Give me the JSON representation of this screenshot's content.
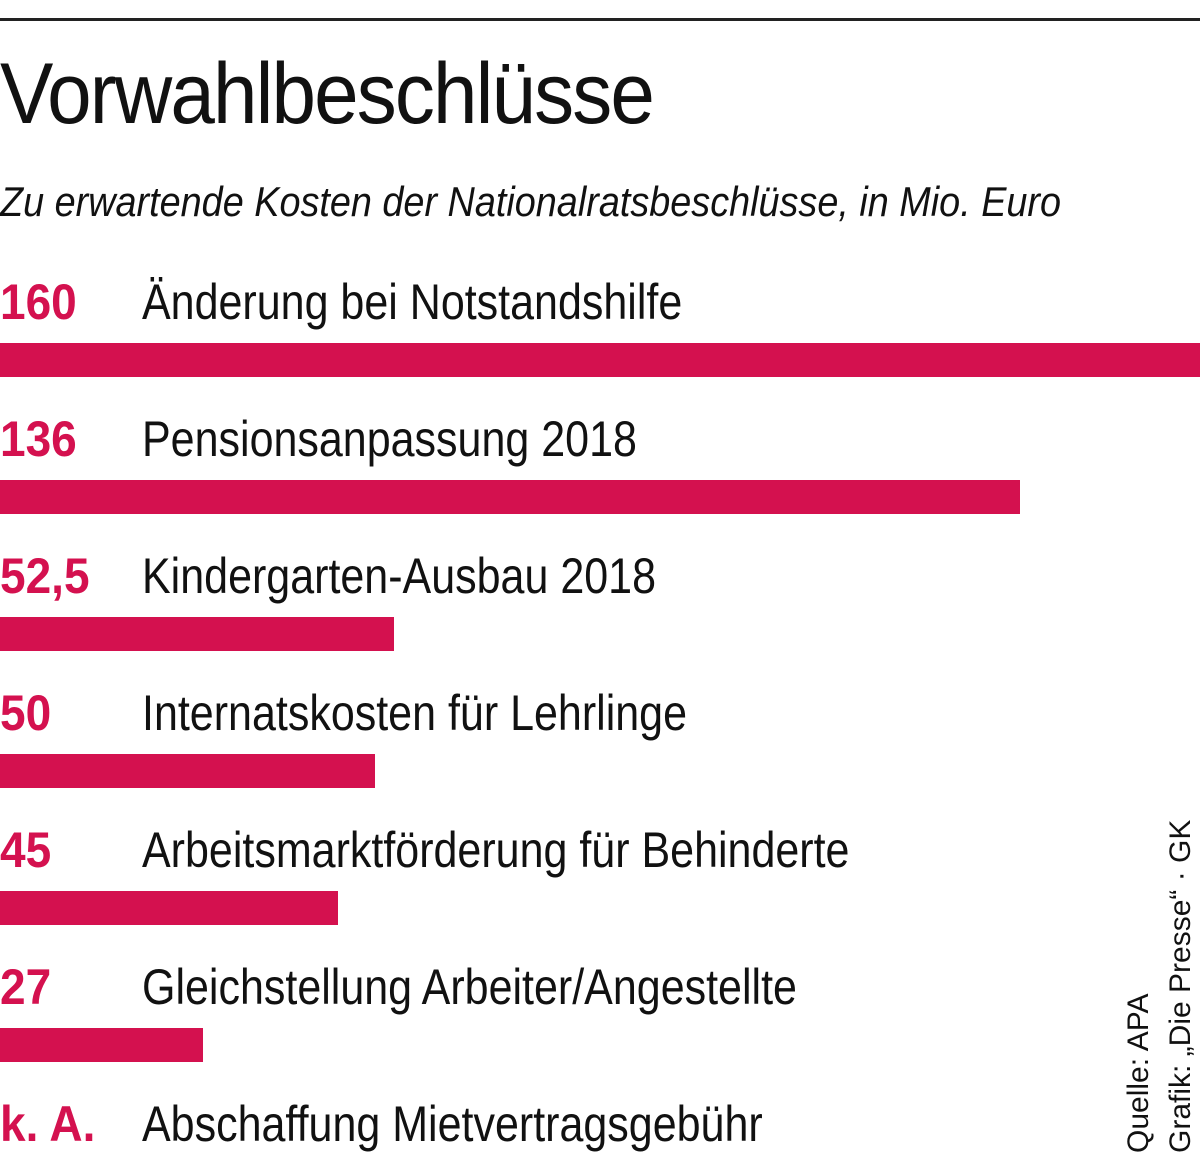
{
  "title": "Vorwahlbeschlüsse",
  "subtitle": "Zu erwartende Kosten der Nationalratsbeschlüsse, in Mio. Euro",
  "source_line": "Quelle: APA",
  "credit_line": "Grafik: „Die Presse“ · GK",
  "colors": {
    "bar": "#d4114f",
    "value_text": "#d4114f",
    "text": "#111111",
    "rule": "#222222"
  },
  "chart_data": {
    "type": "bar",
    "orientation": "horizontal",
    "title": "Vorwahlbeschlüsse",
    "subtitle": "Zu erwartende Kosten der Nationalratsbeschlüsse, in Mio. Euro",
    "xlim": [
      0,
      160
    ],
    "grid": false,
    "categories": [
      "Änderung bei Notstandshilfe",
      "Pensionsanpassung 2018",
      "Kindergarten-Ausbau 2018",
      "Internatskosten für Lehrlinge",
      "Arbeitsmarktförderung für Behinderte",
      "Gleichstellung Arbeiter/Angestellte",
      "Abschaffung Mietvertragsgebühr"
    ],
    "values": [
      160,
      136,
      52.5,
      50,
      45,
      27,
      null
    ],
    "value_labels": [
      "160",
      "136",
      "52,5",
      "50",
      "45",
      "27",
      "k. A."
    ]
  }
}
